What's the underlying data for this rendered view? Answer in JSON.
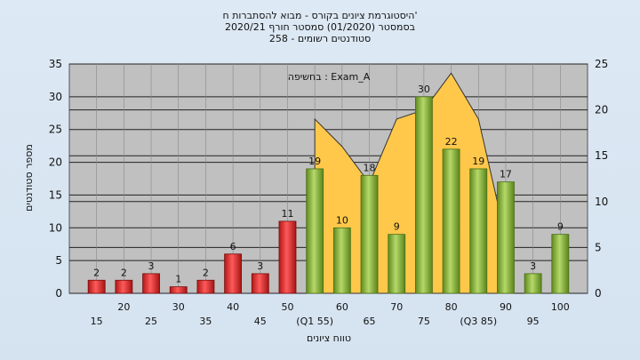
{
  "titles": [
    "היסטוגרמת ציונים בקורס - מבוא להסתברות ח'",
    "בסמסטר  (01/2020)  סמסטר חורף  2020/21",
    "סטודנטים רשומים - 258"
  ],
  "chart_data": {
    "type": "bar",
    "title": "היסטוגרמת ציונים בקורס - מבוא להסתברות ח'",
    "subtitle": "בסמסטר  (01/2020)  סמסטר חורף  2020/21 | סטודנטים רשומים - 258",
    "annotation": "בחשיפה : Exam_A",
    "xlabel": "טווח ציונים",
    "ylabel": "מספר סטודנטים",
    "ylim": [
      0,
      35
    ],
    "ylim_right": [
      0,
      25
    ],
    "yticks": [
      0,
      5,
      10,
      15,
      20,
      25,
      30,
      35
    ],
    "yticks_right": [
      0,
      5,
      10,
      15,
      20,
      25
    ],
    "grid": true,
    "categories": [
      15,
      20,
      25,
      30,
      35,
      40,
      45,
      50,
      55,
      60,
      65,
      70,
      75,
      80,
      85,
      90,
      95,
      100
    ],
    "xtick_labels": [
      "15",
      "20",
      "25",
      "30",
      "35",
      "40",
      "45",
      "50",
      "(Q1 55)",
      "60",
      "65",
      "70",
      "75",
      "80",
      "(Q3 85)",
      "90",
      "95",
      "100"
    ],
    "values": [
      2,
      2,
      3,
      1,
      2,
      6,
      3,
      11,
      19,
      10,
      18,
      9,
      30,
      22,
      19,
      17,
      3,
      9
    ],
    "bar_colors": {
      "fail": "#e03030",
      "pass": "#8dbb3c"
    },
    "fail_threshold": 55,
    "area_series": {
      "categories": [
        55,
        60,
        65,
        70,
        75,
        80,
        85,
        90
      ],
      "values": [
        19,
        16,
        12,
        19,
        20,
        24,
        19,
        6
      ],
      "color": "#ffc84a"
    }
  }
}
